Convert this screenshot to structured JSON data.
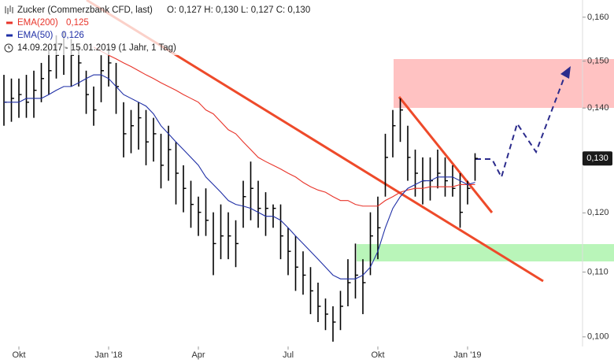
{
  "chart_data": {
    "type": "ohlc",
    "title": "Zucker (Commerzbank CFD, last)",
    "quote": "O: 0,127  H: 0,130  L: 0,127  C: 0,130",
    "period": "14.09.2017 - 15.01.2019  (1 Jahr, 1 Tag)",
    "color": "#000000",
    "log": true,
    "ylim": [
      0.0986,
      0.1641
    ],
    "yticks": [
      {
        "value": 0.1,
        "label": "0,100"
      },
      {
        "value": 0.11,
        "label": "0,110"
      },
      {
        "value": 0.12,
        "label": "0,120"
      },
      {
        "value": 0.13,
        "label": "0,130"
      },
      {
        "value": 0.14,
        "label": "0,140"
      },
      {
        "value": 0.15,
        "label": "0,150"
      },
      {
        "value": 0.16,
        "label": "0,160"
      }
    ],
    "last_price_label": "0,130",
    "categories": [
      null,
      null,
      "Okt",
      null,
      null,
      null,
      null,
      null,
      null,
      null,
      null,
      null,
      null,
      null,
      "Jan '18",
      null,
      null,
      null,
      null,
      null,
      null,
      null,
      null,
      null,
      null,
      null,
      "Apr",
      null,
      null,
      null,
      null,
      null,
      null,
      null,
      null,
      null,
      null,
      null,
      "Jul",
      null,
      null,
      null,
      null,
      null,
      null,
      null,
      null,
      null,
      null,
      null,
      "Okt",
      null,
      null,
      null,
      null,
      null,
      null,
      null,
      null,
      null,
      null,
      null,
      "Jan '19",
      null
    ],
    "high": [
      0.147,
      0.1462,
      0.1462,
      0.147,
      0.1479,
      0.1496,
      0.1531,
      0.1558,
      0.1567,
      0.1549,
      0.1531,
      0.1479,
      0.1445,
      0.1513,
      0.1531,
      0.1496,
      0.1412,
      0.1396,
      0.1412,
      0.1396,
      0.138,
      0.1348,
      0.1364,
      0.1332,
      0.1287,
      0.1258,
      0.1229,
      0.1244,
      0.1201,
      0.1215,
      0.1201,
      0.1187,
      0.1258,
      0.1294,
      0.1258,
      0.1237,
      0.1215,
      0.1215,
      0.1174,
      0.116,
      0.1134,
      0.1108,
      0.1083,
      0.1058,
      0.1046,
      0.107,
      0.1121,
      0.1147,
      0.1121,
      0.1201,
      0.1229,
      0.1348,
      0.1396,
      0.142,
      0.1364,
      0.1317,
      0.1302,
      0.1302,
      0.1317,
      0.1302,
      0.1287,
      0.1272,
      0.1258,
      0.131
    ],
    "low": [
      0.1364,
      0.1372,
      0.138,
      0.138,
      0.138,
      0.1412,
      0.1428,
      0.1462,
      0.147,
      0.1445,
      0.1445,
      0.1388,
      0.1364,
      0.1412,
      0.1445,
      0.1388,
      0.1302,
      0.131,
      0.1317,
      0.1287,
      0.1294,
      0.1244,
      0.1258,
      0.1215,
      0.1201,
      0.1174,
      0.116,
      0.116,
      0.1095,
      0.1121,
      0.1121,
      0.1108,
      0.1174,
      0.1187,
      0.1174,
      0.116,
      0.1174,
      0.1121,
      0.1095,
      0.107,
      0.1064,
      0.1034,
      0.1022,
      0.101,
      0.0993,
      0.101,
      0.1046,
      0.1058,
      0.1034,
      0.1095,
      0.1121,
      0.1229,
      0.1302,
      0.1332,
      0.1258,
      0.1229,
      0.1215,
      0.1222,
      0.1244,
      0.1229,
      0.1229,
      0.1174,
      0.1215,
      0.1258
    ],
    "close": [
      0.1412,
      0.142,
      0.1428,
      0.1412,
      0.1437,
      0.1462,
      0.1479,
      0.1513,
      0.1531,
      0.1513,
      0.1496,
      0.1428,
      0.1396,
      0.1479,
      0.1496,
      0.1445,
      0.1348,
      0.1364,
      0.138,
      0.1332,
      0.1348,
      0.1287,
      0.1317,
      0.1272,
      0.1244,
      0.1215,
      0.1201,
      0.1187,
      0.1147,
      0.116,
      0.116,
      0.1147,
      0.1229,
      0.1244,
      0.1208,
      0.1208,
      0.1208,
      0.116,
      0.1134,
      0.1108,
      0.1095,
      0.107,
      0.1046,
      0.1034,
      0.1022,
      0.1046,
      0.1083,
      0.1095,
      0.1083,
      0.116,
      0.1174,
      0.1302,
      0.1364,
      0.1396,
      0.1302,
      0.1272,
      0.1258,
      0.1258,
      0.1272,
      0.1258,
      0.1244,
      0.1201,
      0.1244,
      0.13
    ],
    "series": [
      {
        "name": "EMA(200)",
        "legend_value": "0,125",
        "color": "#e8342a",
        "values": [
          null,
          null,
          null,
          null,
          null,
          null,
          null,
          null,
          null,
          null,
          null,
          null,
          0.1531,
          0.1522,
          0.1513,
          0.1505,
          0.1496,
          0.1488,
          0.1479,
          0.147,
          0.1462,
          0.1453,
          0.1445,
          0.1437,
          0.1428,
          0.142,
          0.1412,
          0.1396,
          0.1388,
          0.1372,
          0.1356,
          0.1348,
          0.1332,
          0.1317,
          0.1302,
          0.1294,
          0.1287,
          0.128,
          0.1272,
          0.1265,
          0.1255,
          0.1247,
          0.1241,
          0.1237,
          0.1229,
          0.1222,
          0.1222,
          0.1215,
          0.1212,
          0.1212,
          0.1212,
          0.1222,
          0.1229,
          0.1237,
          0.1241,
          0.1244,
          0.1244,
          0.1247,
          0.1247,
          0.1247,
          0.1247,
          0.1251,
          0.1251,
          0.1251
        ]
      },
      {
        "name": "EMA(50)",
        "legend_value": "0,126",
        "color": "#1f2fa6",
        "values": [
          0.1412,
          0.1412,
          0.1412,
          0.142,
          0.142,
          0.142,
          0.1428,
          0.1437,
          0.1445,
          0.1445,
          0.1453,
          0.1462,
          0.147,
          0.147,
          0.1462,
          0.1445,
          0.1428,
          0.142,
          0.1412,
          0.1404,
          0.1388,
          0.1364,
          0.1348,
          0.1332,
          0.1317,
          0.1302,
          0.1287,
          0.1265,
          0.1251,
          0.1237,
          0.1222,
          0.1215,
          0.1212,
          0.1208,
          0.1201,
          0.1194,
          0.1194,
          0.1187,
          0.1174,
          0.116,
          0.1147,
          0.1134,
          0.1121,
          0.1108,
          0.1095,
          0.1089,
          0.1089,
          0.1089,
          0.1095,
          0.1108,
          0.1134,
          0.1174,
          0.1208,
          0.1229,
          0.1244,
          0.1251,
          0.1258,
          0.1258,
          0.1265,
          0.1265,
          0.1265,
          0.1258,
          0.1251,
          0.1255
        ]
      }
    ]
  }
}
